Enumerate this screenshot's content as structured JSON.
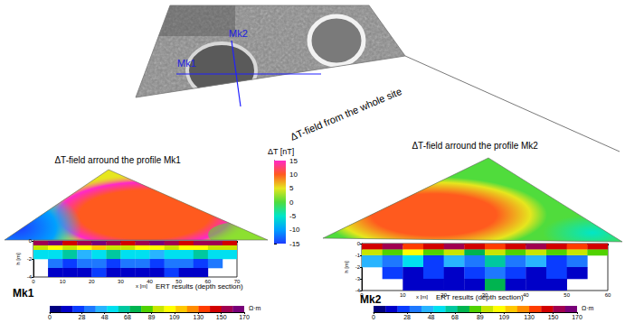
{
  "top_map": {
    "title": "ΔT-field from the whole site",
    "profiles": [
      "Mk1",
      "Mk2"
    ]
  },
  "chart_data": [
    {
      "type": "colorbar",
      "title": "ΔT [nT]",
      "ylim": [
        -15,
        15
      ],
      "yticks": [
        -15,
        -10,
        -5,
        0,
        5,
        10,
        15
      ],
      "colors": [
        "#1e3cff",
        "#00a0ff",
        "#00e6c8",
        "#50dc3c",
        "#e6e61e",
        "#ff5a1e",
        "#ff28c8"
      ]
    },
    {
      "type": "section",
      "title": "ΔT-field arround the profile Mk1",
      "label": "Mk1",
      "subtitle": "ERT results (depth section)",
      "x_label": "x [m]",
      "y_label": "h [m]",
      "xlim": [
        0,
        70
      ],
      "xticks": [
        0,
        10,
        20,
        30,
        40,
        50,
        60,
        70
      ],
      "ylim": [
        -4,
        0
      ],
      "yticks": [
        -4,
        -2,
        0
      ],
      "x_edges": [
        0,
        5,
        10,
        15,
        20,
        25,
        30,
        35,
        40,
        45,
        50,
        55,
        60,
        65,
        70
      ],
      "z_edges": [
        0,
        -0.5,
        -1,
        -2,
        -3,
        -4
      ],
      "resistivity": [
        [
          150,
          160,
          145,
          155,
          165,
          150,
          140,
          155,
          160,
          150,
          145,
          155,
          150,
          140
        ],
        [
          95,
          105,
          90,
          100,
          110,
          95,
          90,
          100,
          105,
          95,
          100,
          105,
          95,
          90
        ],
        [
          50,
          55,
          60,
          45,
          55,
          60,
          50,
          55,
          45,
          50,
          55,
          60,
          50,
          55
        ],
        [
          null,
          30,
          25,
          35,
          30,
          25,
          30,
          35,
          25,
          30,
          30,
          25,
          30,
          null
        ],
        [
          null,
          15,
          10,
          15,
          20,
          10,
          15,
          10,
          15,
          20,
          10,
          15,
          null,
          null
        ]
      ],
      "colorbar": {
        "ticks": [
          0,
          28,
          48,
          68,
          89,
          109,
          130,
          150,
          170
        ],
        "unit": "Ω·m",
        "colors": [
          "#00007f",
          "#0000c8",
          "#0a3cff",
          "#1e78ff",
          "#28b4ff",
          "#00e0f0",
          "#00c8a0",
          "#00b450",
          "#50d200",
          "#c8e600",
          "#ffff00",
          "#ffc800",
          "#ff8c00",
          "#ff3c00",
          "#d20000",
          "#a00050",
          "#780078"
        ]
      }
    },
    {
      "type": "section",
      "title": "ΔT-field arround the profile Mk2",
      "label": "Mk2",
      "subtitle": "ERT results (depth section)",
      "x_label": "x [m]",
      "y_label": "h [m]",
      "xlim": [
        0,
        60
      ],
      "xticks": [
        0,
        10,
        20,
        30,
        40,
        50,
        60
      ],
      "ylim": [
        -4,
        0
      ],
      "yticks": [
        -4,
        -3,
        -2,
        -1,
        0
      ],
      "x_edges": [
        0,
        5,
        10,
        15,
        20,
        25,
        30,
        35,
        40,
        45,
        50,
        55,
        60
      ],
      "z_edges": [
        0,
        -0.5,
        -1,
        -2,
        -3,
        -4
      ],
      "resistivity": [
        [
          140,
          150,
          135,
          145,
          150,
          140,
          135,
          145,
          150,
          140,
          135,
          140
        ],
        [
          90,
          80,
          100,
          85,
          95,
          75,
          90,
          85,
          95,
          80,
          90,
          85
        ],
        [
          40,
          30,
          55,
          25,
          45,
          30,
          60,
          35,
          40,
          25,
          35,
          null
        ],
        [
          null,
          20,
          15,
          25,
          15,
          20,
          30,
          20,
          15,
          20,
          15,
          null
        ],
        [
          null,
          null,
          10,
          15,
          10,
          15,
          70,
          15,
          10,
          10,
          null,
          null
        ]
      ],
      "colorbar": {
        "ticks": [
          0,
          28,
          48,
          68,
          89,
          109,
          130,
          150,
          170
        ],
        "unit": "Ω·m",
        "colors": [
          "#00007f",
          "#0000c8",
          "#0a3cff",
          "#1e78ff",
          "#28b4ff",
          "#00e0f0",
          "#00c8a0",
          "#00b450",
          "#50d200",
          "#c8e600",
          "#ffff00",
          "#ffc800",
          "#ff8c00",
          "#ff3c00",
          "#d20000",
          "#a00050",
          "#780078"
        ]
      }
    }
  ]
}
